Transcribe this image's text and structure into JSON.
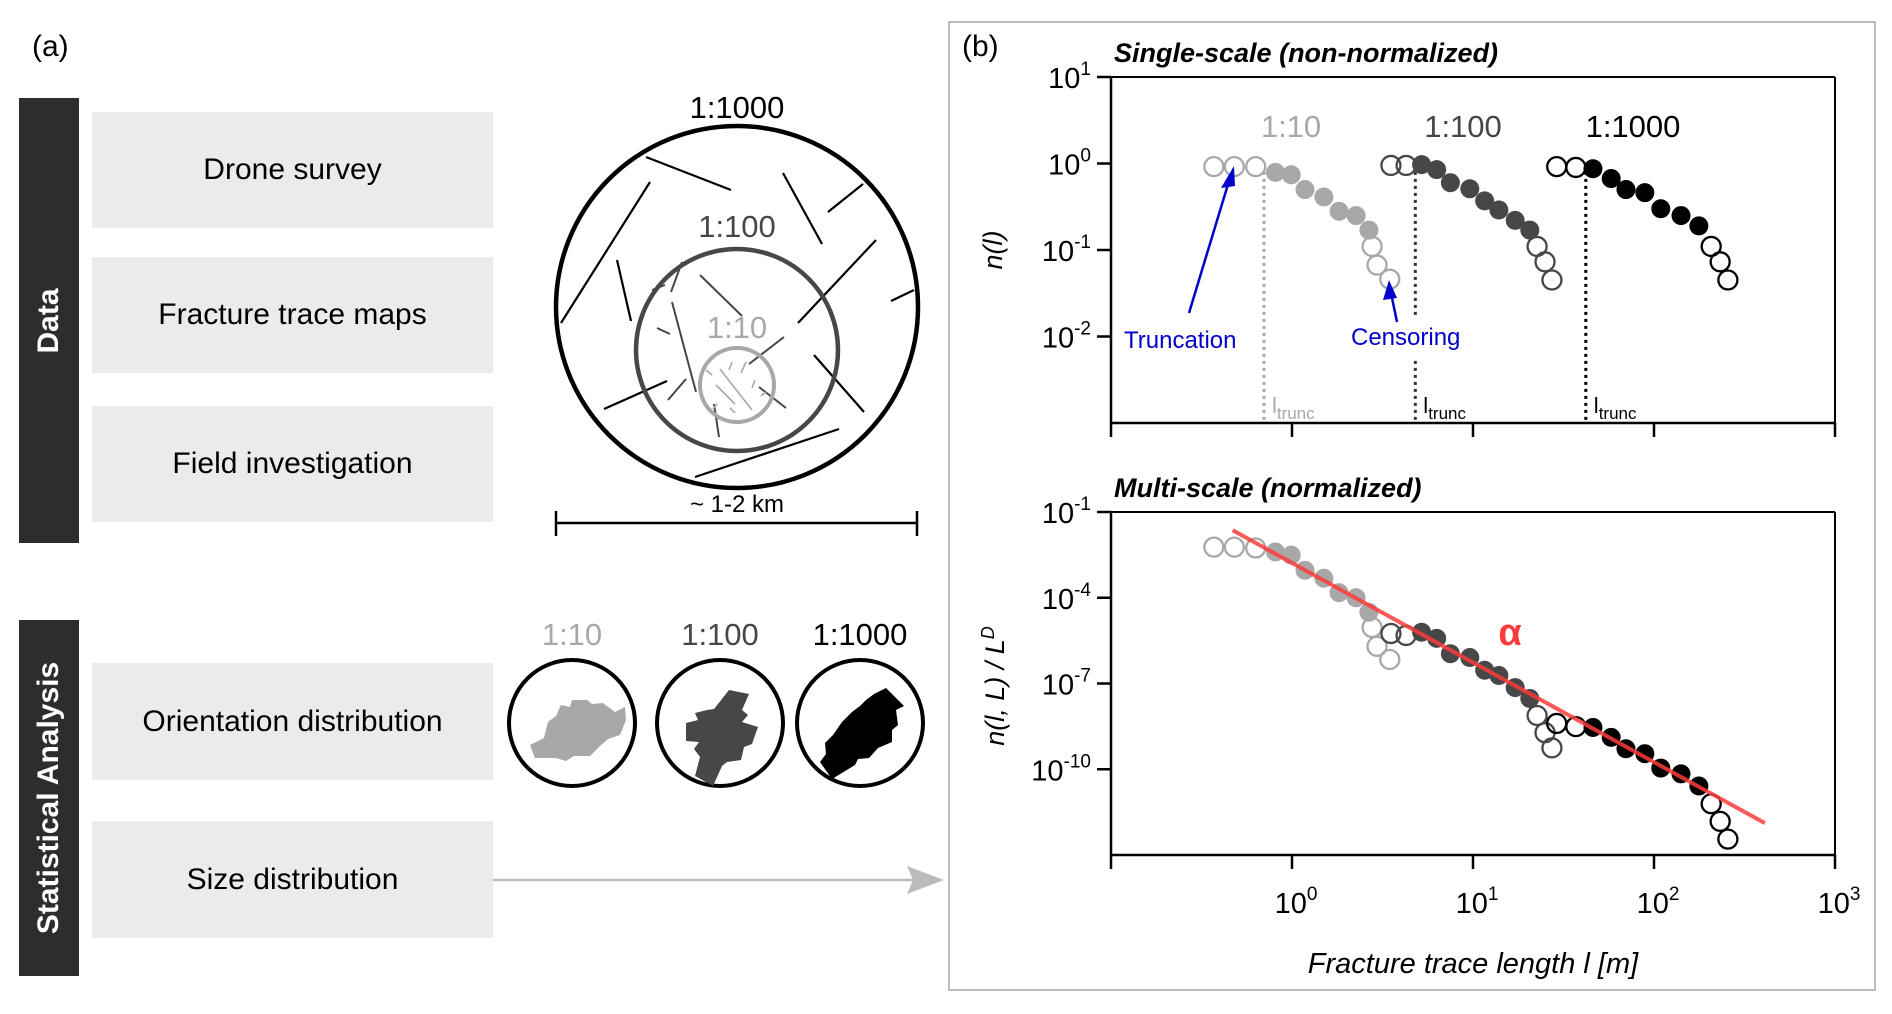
{
  "panel_a": {
    "label": "(a)",
    "data_section": {
      "title": "Data",
      "items": [
        "Drone survey",
        "Fracture trace maps",
        "Field investigation"
      ]
    },
    "analysis_section": {
      "title": "Statistical Analysis",
      "items": [
        "Orientation distribution",
        "Size distribution"
      ]
    },
    "trace_map": {
      "scales": [
        "1:1000",
        "1:100",
        "1:10"
      ],
      "scale_bar_label": "~ 1-2 km"
    },
    "rose_diagrams": [
      {
        "label": "1:10",
        "color": "#a8a8a8"
      },
      {
        "label": "1:100",
        "color": "#474747"
      },
      {
        "label": "1:1000",
        "color": "#000000"
      }
    ]
  },
  "panel_b": {
    "label": "(b)"
  },
  "colors": {
    "scale_1_10": "#a8a8a8",
    "scale_1_100": "#474747",
    "scale_1_1000": "#000000",
    "annotation": "#0000cc",
    "fit_line": "#ff3b3b",
    "box_bg": "#ebebeb",
    "bar_bg": "#2d2d2d"
  },
  "chart_data": [
    {
      "type": "scatter",
      "title": "Single-scale (non-normalized)",
      "xlabel": "",
      "ylabel": "n(l)",
      "xscale": "log",
      "yscale": "log",
      "xlim": [
        0.1,
        1000
      ],
      "ylim": [
        0.001,
        10
      ],
      "yticks": [
        {
          "v": 10,
          "label": "10",
          "exp": "1"
        },
        {
          "v": 1,
          "label": "10",
          "exp": "0"
        },
        {
          "v": 0.1,
          "label": "10",
          "exp": "-1"
        },
        {
          "v": 0.01,
          "label": "10",
          "exp": "-2"
        }
      ],
      "xticks": [
        0.1,
        1,
        10,
        100,
        1000
      ],
      "grid": false,
      "series_labels": [
        "1:10",
        "1:100",
        "1:1000"
      ],
      "series": [
        {
          "name": "1:10",
          "color": "#a8a8a8",
          "truncated": {
            "x": [
              0.37,
              0.48,
              0.63
            ],
            "y": [
              0.92,
              0.92,
              0.92
            ]
          },
          "fitted": {
            "x": [
              0.81,
              0.99,
              1.18,
              1.5,
              1.82,
              2.26,
              2.66
            ],
            "y": [
              0.79,
              0.74,
              0.5,
              0.41,
              0.28,
              0.25,
              0.17
            ]
          },
          "censored": {
            "x": [
              2.77,
              2.95,
              3.47
            ],
            "y": [
              0.11,
              0.067,
              0.046
            ]
          },
          "l_trunc": 0.7
        },
        {
          "name": "1:100",
          "color": "#474747",
          "truncated": {
            "x": [
              3.52,
              4.27
            ],
            "y": [
              0.95,
              0.95
            ]
          },
          "fitted": {
            "x": [
              5.2,
              6.3,
              7.5,
              9.6,
              11.6,
              13.9,
              17.1,
              20.6
            ],
            "y": [
              0.97,
              0.85,
              0.6,
              0.51,
              0.37,
              0.29,
              0.22,
              0.17
            ]
          },
          "censored": {
            "x": [
              22.6,
              25.0,
              27.3
            ],
            "y": [
              0.11,
              0.073,
              0.045
            ]
          },
          "l_trunc": 4.8
        },
        {
          "name": "1:1000",
          "color": "#000000",
          "truncated": {
            "x": [
              29,
              37
            ],
            "y": [
              0.92,
              0.9
            ]
          },
          "fitted": {
            "x": [
              46,
              58,
              70,
              89,
              109,
              141,
              177
            ],
            "y": [
              0.87,
              0.67,
              0.5,
              0.46,
              0.3,
              0.25,
              0.19
            ]
          },
          "censored": {
            "x": [
              207,
              232,
              256
            ],
            "y": [
              0.11,
              0.073,
              0.045
            ]
          },
          "l_trunc": 42
        }
      ],
      "annotations": [
        {
          "text": "Truncation",
          "color": "#0000cc",
          "points_to": {
            "x": 0.48,
            "y": 0.9
          }
        },
        {
          "text": "Censoring",
          "color": "#0000cc",
          "points_to": {
            "x": 3.47,
            "y": 0.046
          }
        }
      ],
      "trunc_label": {
        "main": "l",
        "sub": "trunc"
      }
    },
    {
      "type": "scatter",
      "title": "Multi-scale (normalized)",
      "xlabel": "Fracture trace length l [m]",
      "ylabel": "n(l, L) / L",
      "ylabel_sup": "D",
      "xscale": "log",
      "yscale": "log",
      "xlim": [
        0.1,
        1000
      ],
      "ylim": [
        1e-13,
        0.1
      ],
      "yticks": [
        {
          "v": 0.1,
          "label": "10",
          "exp": "-1"
        },
        {
          "v": 0.0001,
          "label": "10",
          "exp": "-4"
        },
        {
          "v": 1e-07,
          "label": "10",
          "exp": "-7"
        },
        {
          "v": 1e-10,
          "label": "10",
          "exp": "-10"
        }
      ],
      "xticks": [
        {
          "v": 0.1,
          "label": "",
          "exp": ""
        },
        {
          "v": 1,
          "label": "10",
          "exp": "0"
        },
        {
          "v": 10,
          "label": "10",
          "exp": "1"
        },
        {
          "v": 100,
          "label": "10",
          "exp": "2"
        },
        {
          "v": 1000,
          "label": "10",
          "exp": "3"
        }
      ],
      "grid": false,
      "series": [
        {
          "name": "1:10",
          "color": "#a8a8a8",
          "truncated": {
            "x": [
              0.37,
              0.48,
              0.63
            ],
            "y": [
              0.0059,
              0.0059,
              0.0055
            ]
          },
          "fitted": {
            "x": [
              0.81,
              0.99,
              1.18,
              1.5,
              1.82,
              2.26,
              2.66
            ],
            "y": [
              0.004,
              0.0031,
              0.00091,
              0.00048,
              0.00015,
              0.0001,
              3.1e-05
            ]
          },
          "censored": {
            "x": [
              2.77,
              2.95,
              3.47
            ],
            "y": [
              9.1e-06,
              2e-06,
              6.9e-07
            ]
          }
        },
        {
          "name": "1:100",
          "color": "#474747",
          "truncated": {
            "x": [
              3.52,
              4.27
            ],
            "y": [
              5.6e-06,
              4.8e-06
            ]
          },
          "fitted": {
            "x": [
              5.2,
              6.3,
              7.5,
              9.6,
              11.6,
              13.9,
              17.1,
              20.6
            ],
            "y": [
              6.2e-06,
              3.8e-06,
              1.1e-06,
              8.1e-07,
              2.9e-07,
              1.9e-07,
              7.2e-08,
              3e-08
            ]
          },
          "censored": {
            "x": [
              22.6,
              25.0,
              27.3
            ],
            "y": [
              7.6e-09,
              1.9e-09,
              5.6e-10
            ]
          }
        },
        {
          "name": "1:1000",
          "color": "#000000",
          "truncated": {
            "x": [
              29,
              37
            ],
            "y": [
              4e-09,
              3.1e-09
            ]
          },
          "fitted": {
            "x": [
              46,
              58,
              70,
              89,
              109,
              141,
              177
            ],
            "y": [
              2.9e-09,
              1.3e-09,
              5.2e-10,
              3.5e-10,
              1.1e-10,
              6.9e-11,
              2.6e-11
            ]
          },
          "censored": {
            "x": [
              207,
              232,
              256
            ],
            "y": [
              6.2e-12,
              1.5e-12,
              3.6e-13
            ]
          }
        }
      ],
      "fit_line": {
        "label": "α",
        "color": "#ff3b3b",
        "x": [
          0.47,
          410
        ],
        "y": [
          0.023,
          1.3e-12
        ]
      }
    }
  ]
}
